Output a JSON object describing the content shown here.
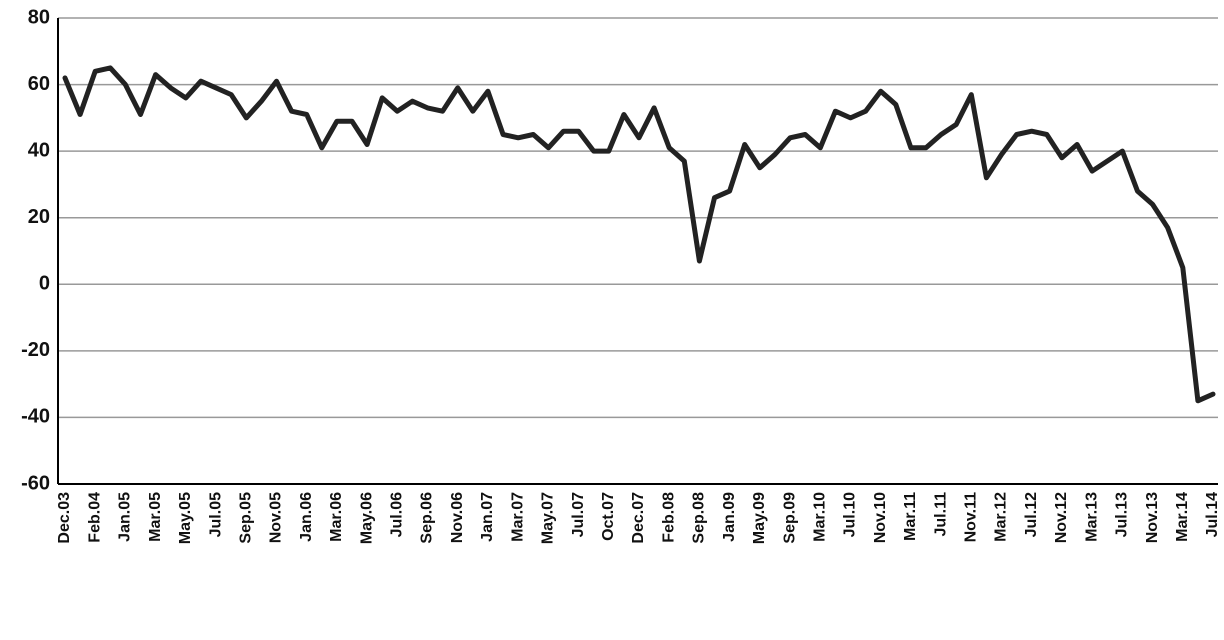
{
  "chart_data": {
    "type": "line",
    "categories": [
      "Dec.03",
      null,
      "Feb.04",
      null,
      "Jan.05",
      null,
      "Mar.05",
      null,
      "May.05",
      null,
      "Jul.05",
      null,
      "Sep.05",
      null,
      "Nov.05",
      null,
      "Jan.06",
      null,
      "Mar.06",
      null,
      "May.06",
      null,
      "Jul.06",
      null,
      "Sep.06",
      null,
      "Nov.06",
      null,
      "Jan.07",
      null,
      "Mar.07",
      null,
      "May.07",
      null,
      "Jul.07",
      null,
      "Oct.07",
      null,
      "Dec.07",
      null,
      "Feb.08",
      null,
      "Sep.08",
      null,
      "Jan.09",
      null,
      "May.09",
      null,
      "Sep.09",
      null,
      "Mar.10",
      null,
      "Jul.10",
      null,
      "Nov.10",
      null,
      "Mar.11",
      null,
      "Jul.11",
      null,
      "Nov.11",
      null,
      "Mar.12",
      null,
      "Jul.12",
      null,
      "Nov.12",
      null,
      "Mar.13",
      null,
      "Jul.13",
      null,
      "Nov.13",
      null,
      "Mar.14",
      null,
      "Jul.14"
    ],
    "values": [
      62,
      51,
      64,
      65,
      60,
      51,
      63,
      59,
      56,
      61,
      59,
      57,
      50,
      55,
      61,
      52,
      51,
      41,
      49,
      49,
      42,
      56,
      52,
      55,
      53,
      52,
      59,
      52,
      58,
      45,
      44,
      45,
      41,
      46,
      46,
      40,
      40,
      51,
      44,
      53,
      41,
      37,
      7,
      26,
      28,
      42,
      35,
      39,
      44,
      45,
      41,
      52,
      50,
      52,
      58,
      54,
      41,
      41,
      45,
      48,
      57,
      32,
      39,
      45,
      46,
      45,
      38,
      42,
      34,
      37,
      40,
      28,
      24,
      17,
      5,
      -35,
      -33
    ],
    "color": "#222222",
    "ylim": [
      -60,
      80
    ],
    "yticks": [
      -60,
      -40,
      -20,
      0,
      20,
      40,
      60,
      80
    ],
    "grid": true
  }
}
